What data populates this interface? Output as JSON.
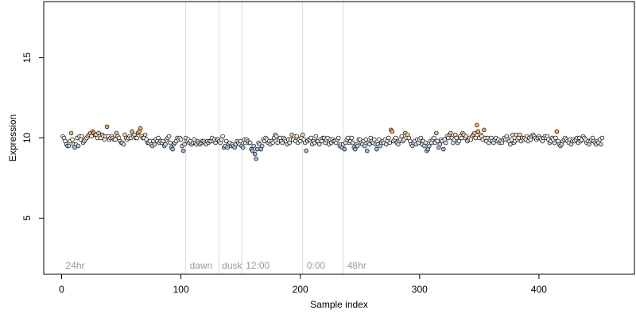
{
  "chart_data": {
    "type": "scatter",
    "xlabel": "Sample index",
    "ylabel": "Expression",
    "xlim": [
      -15,
      480
    ],
    "ylim": [
      1.5,
      18.5
    ],
    "x_ticks": [
      0,
      100,
      200,
      300,
      400
    ],
    "y_ticks": [
      5,
      10,
      15
    ],
    "grid": false,
    "legend": "none",
    "group_boundaries": [
      104,
      132,
      151,
      202,
      236
    ],
    "group_labels": [
      {
        "label": "24hr",
        "x": 2
      },
      {
        "label": "dawn",
        "x": 106
      },
      {
        "label": "dusk",
        "x": 133
      },
      {
        "label": "12:00",
        "x": 153
      },
      {
        "label": "0:00",
        "x": 204
      },
      {
        "label": "48hr",
        "x": 238
      }
    ],
    "colors": {
      "low": "#a6bddb",
      "mid": "#f7f7f7",
      "high": "#fdae61",
      "outline": "#000000",
      "boundary": "#dcdcdc",
      "group_label": "#9a9a9a"
    },
    "series": [
      {
        "x_start": 1,
        "y": [
          10.1,
          10.0,
          9.8,
          9.6,
          9.5,
          9.5,
          9.8,
          10.3,
          9.9,
          9.6,
          9.4,
          9.6,
          10.0,
          9.5,
          10.1,
          9.9,
          10.1,
          9.7,
          9.8,
          9.9,
          10.0,
          10.1,
          10.2,
          10.3,
          10.1,
          10.4,
          10.3,
          10.2,
          10.2,
          10.0,
          10.3,
          10.1,
          10.0,
          10.2,
          10.1,
          9.9,
          10.1,
          10.7,
          10.1,
          9.9,
          10.0,
          10.1,
          10.0,
          9.9,
          9.9,
          10.3,
          10.1,
          10.0,
          9.8,
          9.7,
          9.7,
          9.6,
          10.2,
          10.0,
          9.9,
          10.0,
          10.1,
          10.0,
          10.4,
          10.1,
          10.2,
          10.0,
          10.0,
          10.3,
          10.4,
          10.6,
          10.1,
          10.0,
          10.0,
          10.2,
          9.9,
          9.7,
          9.7,
          9.8,
          9.6,
          9.5,
          9.8,
          9.6,
          9.9,
          9.8,
          10.0,
          9.7,
          9.8,
          9.7,
          9.8,
          9.5,
          9.6,
          9.9,
          10.0,
          10.1,
          9.7,
          9.4,
          9.3,
          9.6,
          9.7,
          9.8,
          10.0,
          9.9,
          10.0,
          9.9,
          9.5,
          9.2,
          9.6,
          10.0,
          9.8,
          9.9,
          9.7,
          9.8,
          9.6,
          9.7,
          9.9,
          9.7,
          9.6,
          9.8,
          9.7,
          9.6,
          9.7,
          9.8,
          9.8,
          9.7,
          9.6,
          9.8,
          9.7,
          9.8,
          9.8,
          10.0,
          9.8,
          9.9,
          9.7,
          9.9,
          9.9,
          9.8,
          9.7,
          9.9,
          10.1,
          9.4,
          9.5,
          9.8,
          9.4,
          9.6,
          9.7,
          9.5,
          9.6,
          9.5,
          9.4,
          9.6,
          9.8,
          9.7,
          9.6,
          9.8,
          9.5,
          9.4,
          9.9,
          9.7,
          9.9,
          9.8,
          9.7,
          9.7,
          9.3,
          9.2,
          9.5,
          9.0,
          8.7,
          9.3,
          9.7,
          9.6,
          9.3,
          9.5,
          9.9,
          9.8,
          10.0,
          9.9,
          9.7,
          9.8,
          9.6,
          9.8,
          9.7,
          10.0,
          10.2,
          10.1,
          9.7,
          9.9,
          10.0,
          9.8,
          9.7,
          10.0,
          9.9,
          9.8,
          9.6,
          9.9,
          9.7,
          9.9,
          10.2,
          9.9,
          10.1,
          9.8,
          10.1,
          9.7,
          9.9,
          9.8,
          10.0,
          10.2,
          9.9,
          9.7,
          9.2,
          9.8,
          9.9,
          9.9,
          10.0,
          9.6,
          9.8,
          9.7,
          10.1,
          9.8,
          9.8,
          9.6,
          9.9,
          9.8,
          10.0,
          10.0,
          9.7,
          9.9,
          10.0,
          9.6,
          9.9,
          9.7,
          9.9,
          9.8,
          9.8,
          9.7,
          9.9,
          10.0,
          9.5,
          9.6,
          9.4,
          9.6,
          9.3,
          9.7,
          9.9,
          10.0,
          9.7,
          9.8,
          10.0,
          9.7,
          9.4,
          9.3,
          9.6,
          9.5,
          9.9,
          9.9,
          9.7,
          9.6,
          9.8,
          9.5,
          9.9,
          9.2,
          9.7,
          9.6,
          10.0,
          9.8,
          9.7,
          9.9,
          9.6,
          9.3,
          9.6,
          9.9,
          9.5,
          9.7,
          9.8,
          9.7,
          9.9,
          9.6,
          9.8,
          10.0,
          9.7,
          10.5,
          10.4,
          9.8,
          9.9,
          10.0,
          9.7,
          9.6,
          9.8,
          9.9,
          10.1,
          9.8,
          9.9,
          10.3,
          10.0,
          10.2,
          10.0,
          9.8,
          9.6,
          9.5,
          9.7,
          9.8,
          9.6,
          9.9,
          9.7,
          9.9,
          10.0,
          9.6,
          9.8,
          9.5,
          9.7,
          9.2,
          9.3,
          9.5,
          9.8,
          9.7,
          9.9,
          10.0,
          9.7,
          10.3,
          9.8,
          9.4,
          9.6,
          9.9,
          9.8,
          9.3,
          9.9,
          9.7,
          10.1,
          10.0,
          10.2,
          10.3,
          10.0,
          9.7,
          9.9,
          10.2,
          10.0,
          9.7,
          9.8,
          10.1,
          10.0,
          10.3,
          10.2,
          10.0,
          10.1,
          9.8,
          9.9,
          10.0,
          9.9,
          10.1,
          10.2,
          10.3,
          10.0,
          10.8,
          10.4,
          10.0,
          10.2,
          10.1,
          9.9,
          10.5,
          10.0,
          9.8,
          10.0,
          9.7,
          9.9,
          10.0,
          9.8,
          9.7,
          9.9,
          10.0,
          9.8,
          9.9,
          9.7,
          9.8,
          9.7,
          9.9,
          10.0,
          9.9,
          10.1,
          9.9,
          9.8,
          9.6,
          9.9,
          10.2,
          9.7,
          9.8,
          10.2,
          9.9,
          10.0,
          10.2,
          9.8,
          10.0,
          9.9,
          10.0,
          9.9,
          10.1,
          9.8,
          10.0,
          9.9,
          10.1,
          10.2,
          10.1,
          10.0,
          9.9,
          10.0,
          10.1,
          10.0,
          9.9,
          9.8,
          10.0,
          10.1,
          10.0,
          10.1,
          9.9,
          9.7,
          9.8,
          10.0,
          9.9,
          9.7,
          10.0,
          10.4,
          9.8,
          9.6,
          9.5,
          9.6,
          9.8,
          9.9,
          10.0,
          9.9,
          9.8,
          9.7,
          9.9,
          9.6,
          9.8,
          9.9,
          9.8,
          9.9,
          10.0,
          9.7,
          10.0,
          9.8,
          9.9,
          10.1,
          10.0,
          9.9,
          9.7,
          9.8,
          9.6,
          9.8,
          9.9,
          10.0,
          9.8,
          9.7,
          9.6,
          9.8,
          9.7,
          9.9,
          9.6,
          10.0
        ]
      }
    ]
  }
}
